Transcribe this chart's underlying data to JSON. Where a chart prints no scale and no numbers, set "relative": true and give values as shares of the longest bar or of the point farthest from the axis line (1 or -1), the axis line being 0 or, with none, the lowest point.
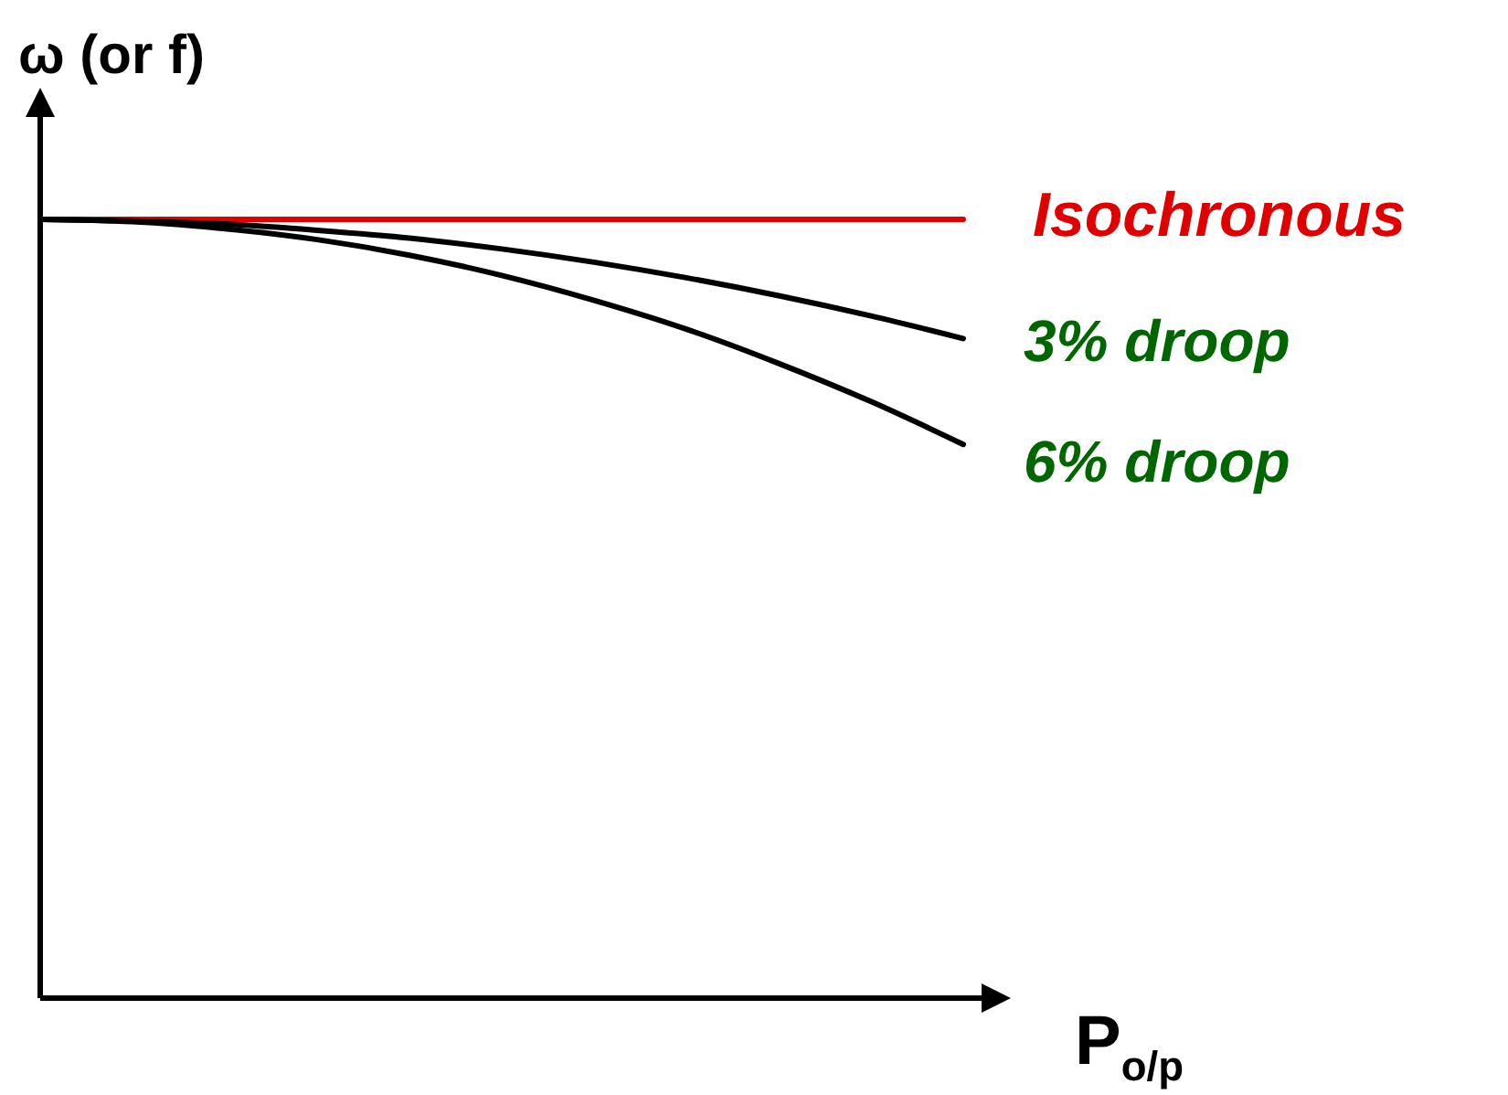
{
  "chart_data": {
    "type": "line",
    "relative": true,
    "xlabel": "P$_{o/p}$",
    "ylabel": "ω (or f)",
    "categories": [
      null,
      null,
      null,
      null,
      null,
      null,
      null,
      null,
      null,
      null,
      null
    ],
    "series": [
      {
        "name": "Isochronous",
        "color": "#e00000",
        "values": [
          1,
          1,
          1,
          1,
          1,
          1,
          1,
          1,
          1,
          1,
          1
        ]
      },
      {
        "name": "3% droop",
        "color": "#000000",
        "values": [
          1,
          0.998,
          0.994,
          0.986,
          0.976,
          0.962,
          0.945,
          0.925,
          0.902,
          0.876,
          0.847
        ]
      },
      {
        "name": "6% droop",
        "color": "#000000",
        "values": [
          1,
          0.997,
          0.988,
          0.974,
          0.954,
          0.928,
          0.896,
          0.859,
          0.815,
          0.766,
          0.711
        ]
      }
    ]
  }
}
